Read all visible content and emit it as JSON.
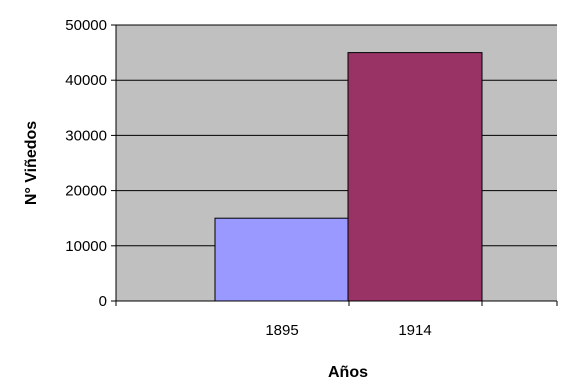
{
  "chart_data": {
    "type": "bar",
    "categories": [
      "1895",
      "1914"
    ],
    "values": [
      15000,
      45000
    ],
    "xlabel": "Años",
    "ylabel": "N° Viñedos",
    "ylim": [
      0,
      50000
    ],
    "yticks": [
      0,
      10000,
      20000,
      30000,
      40000,
      50000
    ],
    "ytick_labels": [
      "0",
      "10000",
      "20000",
      "30000",
      "40000",
      "50000"
    ],
    "grid": "horizontal",
    "legend": "none",
    "bar_colors": [
      "#9999ff",
      "#993366"
    ],
    "plot_background": "#c0c0c0"
  }
}
